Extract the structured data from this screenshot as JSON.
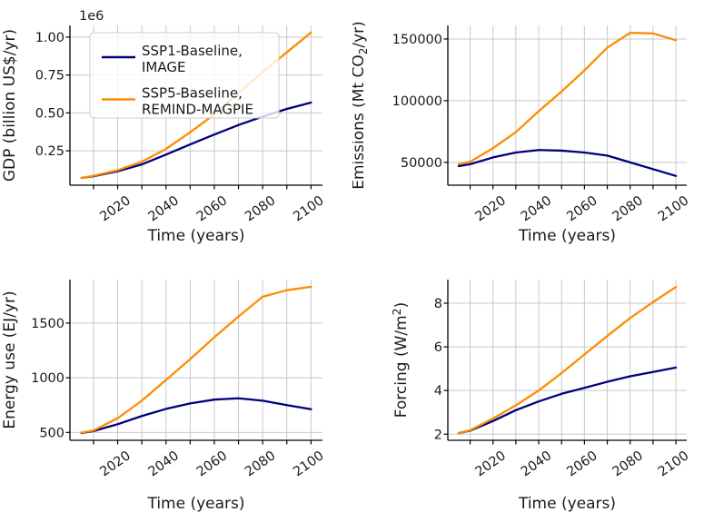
{
  "figure": {
    "background": "#ffffff",
    "grid_color": "#c8c8c8",
    "spine_color": "#000000",
    "text_color": "#1a1a1a",
    "series_colors": {
      "ssp1": "#000080",
      "ssp5": "#ff8c00"
    }
  },
  "legend": {
    "location": "upper left of GDP subplot",
    "entries": [
      {
        "label_lines": [
          "SSP1-Baseline,",
          "IMAGE"
        ],
        "label": "SSP1-Baseline, IMAGE",
        "color": "#000080"
      },
      {
        "label_lines": [
          "SSP5-Baseline,",
          "REMIND-MAGPIE"
        ],
        "label": "SSP5-Baseline, REMIND-MAGPIE",
        "color": "#ff8c00"
      }
    ]
  },
  "chart_data": [
    {
      "id": "gdp",
      "type": "line",
      "title": "",
      "xlabel": "Time (years)",
      "ylabel": "GDP (billion US$/yr)",
      "ylabel_parts": [
        {
          "text": "GDP (billion US$/yr)"
        }
      ],
      "y_offset_label": "1e6",
      "grid": true,
      "x": [
        2005,
        2010,
        2020,
        2030,
        2040,
        2050,
        2060,
        2070,
        2080,
        2090,
        2100
      ],
      "xlim": [
        2000.25,
        2104.75
      ],
      "xticks": [
        2010,
        2020,
        2030,
        2040,
        2050,
        2060,
        2070,
        2080,
        2090,
        2100
      ],
      "xtick_labeled": [
        2020,
        2040,
        2060,
        2080,
        2100
      ],
      "ylim": [
        23000,
        1077000
      ],
      "yticks": [
        {
          "value": 250000,
          "label": "0.25"
        },
        {
          "value": 500000,
          "label": "0.50"
        },
        {
          "value": 750000,
          "label": "0.75"
        },
        {
          "value": 1000000,
          "label": "1.00"
        }
      ],
      "series": [
        {
          "name": "SSP1-Baseline, IMAGE",
          "color": "#000080",
          "values": [
            71000,
            82000,
            115000,
            160000,
            225000,
            292000,
            357000,
            420000,
            476000,
            526000,
            568000
          ]
        },
        {
          "name": "SSP5-Baseline, REMIND-MAGPIE",
          "color": "#ff8c00",
          "values": [
            71000,
            85000,
            122000,
            178000,
            262000,
            372000,
            490000,
            630000,
            770000,
            900000,
            1030000
          ]
        }
      ]
    },
    {
      "id": "emissions",
      "type": "line",
      "title": "",
      "xlabel": "Time (years)",
      "ylabel": "Emissions (Mt CO₂/yr)",
      "ylabel_parts": [
        {
          "text": "Emissions (Mt CO"
        },
        {
          "text": "2",
          "script": "sub"
        },
        {
          "text": "/yr)"
        }
      ],
      "grid": true,
      "x": [
        2005,
        2010,
        2020,
        2030,
        2040,
        2050,
        2060,
        2070,
        2080,
        2090,
        2100
      ],
      "xlim": [
        2000.25,
        2104.75
      ],
      "xticks": [
        2010,
        2020,
        2030,
        2040,
        2050,
        2060,
        2070,
        2080,
        2090,
        2100
      ],
      "xtick_labeled": [
        2020,
        2040,
        2060,
        2080,
        2100
      ],
      "ylim": [
        31500,
        161000
      ],
      "yticks": [
        {
          "value": 50000,
          "label": "50000"
        },
        {
          "value": 100000,
          "label": "100000"
        },
        {
          "value": 150000,
          "label": "150000"
        }
      ],
      "series": [
        {
          "name": "SSP1-Baseline, IMAGE",
          "color": "#000080",
          "values": [
            47000,
            48500,
            54000,
            58000,
            60000,
            59500,
            58000,
            55500,
            50000,
            44500,
            39000
          ]
        },
        {
          "name": "SSP5-Baseline, REMIND-MAGPIE",
          "color": "#ff8c00",
          "values": [
            48500,
            50500,
            61500,
            74500,
            91500,
            107500,
            124500,
            143000,
            155000,
            154500,
            149000
          ]
        }
      ]
    },
    {
      "id": "energy",
      "type": "line",
      "title": "",
      "xlabel": "Time (years)",
      "ylabel": "Energy use (EJ/yr)",
      "ylabel_parts": [
        {
          "text": "Energy use (EJ/yr)"
        }
      ],
      "grid": true,
      "x": [
        2005,
        2010,
        2020,
        2030,
        2040,
        2050,
        2060,
        2070,
        2080,
        2090,
        2100
      ],
      "xlim": [
        2000.25,
        2104.75
      ],
      "xticks": [
        2010,
        2020,
        2030,
        2040,
        2050,
        2060,
        2070,
        2080,
        2090,
        2100
      ],
      "xtick_labeled": [
        2020,
        2040,
        2060,
        2080,
        2100
      ],
      "ylim": [
        428,
        1897
      ],
      "yticks": [
        {
          "value": 500,
          "label": "500"
        },
        {
          "value": 1000,
          "label": "1000"
        },
        {
          "value": 1500,
          "label": "1500"
        }
      ],
      "series": [
        {
          "name": "SSP1-Baseline, IMAGE",
          "color": "#000080",
          "values": [
            495,
            512,
            575,
            650,
            715,
            765,
            800,
            812,
            790,
            750,
            712
          ]
        },
        {
          "name": "SSP5-Baseline, REMIND-MAGPIE",
          "color": "#ff8c00",
          "values": [
            498,
            517,
            630,
            790,
            980,
            1170,
            1370,
            1560,
            1740,
            1800,
            1832
          ]
        }
      ]
    },
    {
      "id": "forcing",
      "type": "line",
      "title": "",
      "xlabel": "Time (years)",
      "ylabel": "Forcing (W/m²)",
      "ylabel_parts": [
        {
          "text": "Forcing (W/m"
        },
        {
          "text": "2",
          "script": "sup"
        },
        {
          "text": ")"
        }
      ],
      "grid": true,
      "x": [
        2005,
        2010,
        2020,
        2030,
        2040,
        2050,
        2060,
        2070,
        2080,
        2090,
        2100
      ],
      "xlim": [
        2000.25,
        2104.75
      ],
      "xticks": [
        2010,
        2020,
        2030,
        2040,
        2050,
        2060,
        2070,
        2080,
        2090,
        2100
      ],
      "xtick_labeled": [
        2020,
        2040,
        2060,
        2080,
        2100
      ],
      "ylim": [
        1.72,
        9.08
      ],
      "yticks": [
        {
          "value": 2,
          "label": "2"
        },
        {
          "value": 4,
          "label": "4"
        },
        {
          "value": 6,
          "label": "6"
        },
        {
          "value": 8,
          "label": "8"
        }
      ],
      "series": [
        {
          "name": "SSP1-Baseline, IMAGE",
          "color": "#000080",
          "values": [
            2.05,
            2.16,
            2.6,
            3.1,
            3.5,
            3.85,
            4.12,
            4.4,
            4.65,
            4.85,
            5.05
          ]
        },
        {
          "name": "SSP5-Baseline, REMIND-MAGPIE",
          "color": "#ff8c00",
          "values": [
            2.05,
            2.18,
            2.72,
            3.32,
            4.0,
            4.8,
            5.65,
            6.5,
            7.32,
            8.05,
            8.74
          ]
        }
      ]
    }
  ]
}
